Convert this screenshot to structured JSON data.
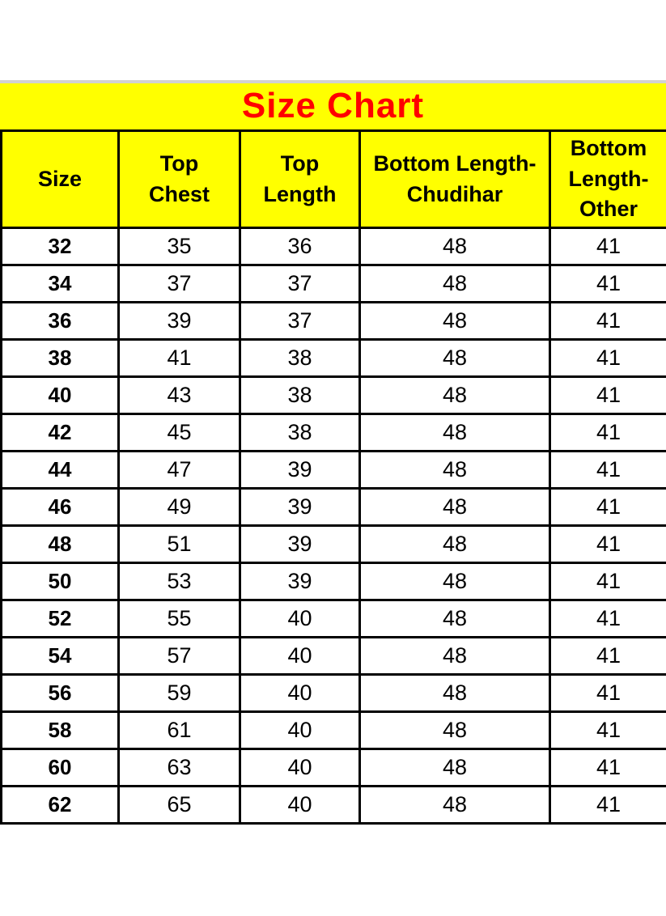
{
  "colors": {
    "band_yellow": "#ffff00",
    "title_red": "#ff0000",
    "border_black": "#000000",
    "divider_gray": "#d2d2d2",
    "background_white": "#ffffff"
  },
  "chart_data": {
    "type": "table",
    "title": "Size Chart",
    "columns": [
      "Size",
      "Top Chest",
      "Top Length",
      "Bottom Length-Chudihar",
      "Bottom Length-Other"
    ],
    "columns_display": [
      "Size",
      "Top\nChest",
      "Top\nLength",
      "Bottom Length-\nChudihar",
      "Bottom\nLength-\nOther"
    ],
    "rows": [
      [
        32,
        35,
        36,
        48,
        41
      ],
      [
        34,
        37,
        37,
        48,
        41
      ],
      [
        36,
        39,
        37,
        48,
        41
      ],
      [
        38,
        41,
        38,
        48,
        41
      ],
      [
        40,
        43,
        38,
        48,
        41
      ],
      [
        42,
        45,
        38,
        48,
        41
      ],
      [
        44,
        47,
        39,
        48,
        41
      ],
      [
        46,
        49,
        39,
        48,
        41
      ],
      [
        48,
        51,
        39,
        48,
        41
      ],
      [
        50,
        53,
        39,
        48,
        41
      ],
      [
        52,
        55,
        40,
        48,
        41
      ],
      [
        54,
        57,
        40,
        48,
        41
      ],
      [
        56,
        59,
        40,
        48,
        41
      ],
      [
        58,
        61,
        40,
        48,
        41
      ],
      [
        60,
        63,
        40,
        48,
        41
      ],
      [
        62,
        65,
        40,
        48,
        41
      ]
    ]
  }
}
